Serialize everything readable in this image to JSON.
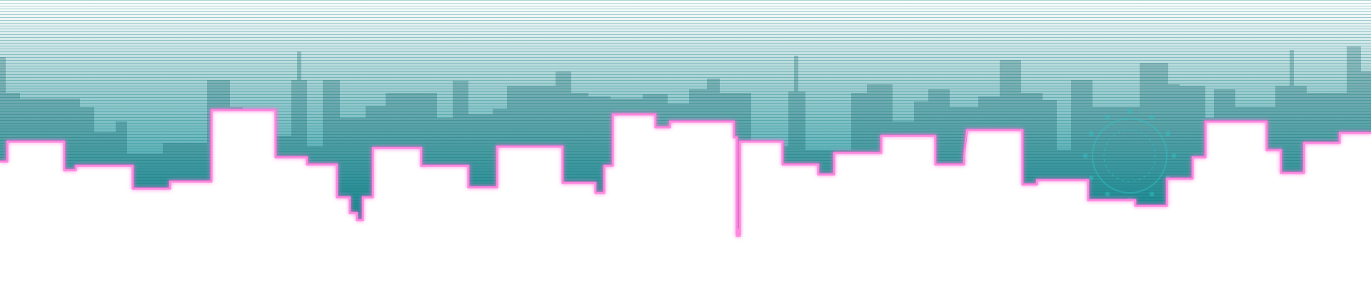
{
  "scene": {
    "colors": {
      "sky_top": "#ffffff",
      "sky_mid": "#a9d2d4",
      "sky_bottom": "#12929c",
      "scanline": "#0e7f86",
      "building_shadow": "#0c5f66",
      "neon_outline": "#ff6fd8",
      "neon_glow": "#ff9fe6",
      "foreground_fill": "#ffffff",
      "emblem": "#2ec4c7"
    },
    "icons": {
      "background_skyline": "city-skyline-silhouette",
      "foreground_skyline": "neon-outlined-skyline",
      "emblem": "sun-dot-ring-emblem"
    }
  }
}
